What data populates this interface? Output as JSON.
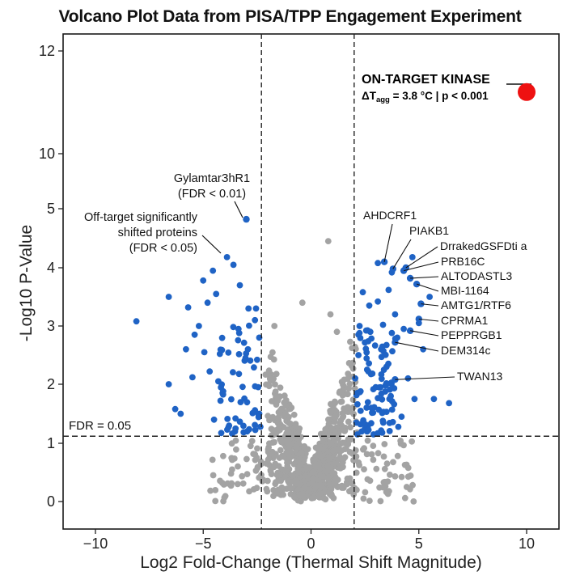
{
  "chart_data": {
    "type": "scatter",
    "title": "Volcano Plot Data from PISA/TPP Engagement Experiment",
    "xlabel": "Log2 Fold-Change (Thermal Shift Magnitude)",
    "ylabel": "-Log10 P-Value",
    "xlim": [
      -11.5,
      11.5
    ],
    "xticks": [
      -10,
      -5,
      0,
      5,
      10
    ],
    "xtick_labels": [
      "−10",
      "−5",
      "0",
      "5",
      "10"
    ],
    "yticks": [
      0,
      1,
      2,
      3,
      4,
      5,
      10,
      12
    ],
    "ytick_labels": [
      "0",
      "1",
      "2",
      "3",
      "4",
      "5",
      "10",
      "12"
    ],
    "y_axis_note": "piecewise axis: 0–5 expanded, 5–12 compressed",
    "vertical_thresholds": [
      -2.3,
      2.0
    ],
    "horizontal_threshold": 1.12,
    "threshold_label": "FDR = 0.05",
    "colors": {
      "nonsignificant": "#a3a3a3",
      "significant": "#1f63c5",
      "target": "#ee1111"
    },
    "target_point": {
      "x": 10.0,
      "y": 11.2,
      "label_line1": "ON-TARGET KINASE",
      "label_line2_prefix": "ΔT",
      "label_line2_sub": "agg",
      "label_line2_rest": " = 3.8 °C | p < 0.001"
    },
    "annotations": {
      "top_protein_line1": "GylamtarЗhR1",
      "top_protein_line2": "(FDR < 0.01)",
      "offtarget_line1": "Off-target significantly",
      "offtarget_line2": "shifted proteins",
      "offtarget_line3": "(FDR < 0.05)"
    },
    "labeled_proteins": [
      {
        "label": "AHDCRF1",
        "x": 3.4,
        "y": 4.1
      },
      {
        "label": "PIAKB1",
        "x": 3.8,
        "y": 3.98
      },
      {
        "label": "DrrakedGSFDti a",
        "x": 4.4,
        "y": 4.0
      },
      {
        "label": "PRB16C",
        "x": 4.3,
        "y": 3.95
      },
      {
        "label": "ALTODASTL3",
        "x": 4.6,
        "y": 3.82
      },
      {
        "label": "MBI-1164",
        "x": 4.9,
        "y": 3.72
      },
      {
        "label": "AMTG1/RTF6",
        "x": 5.1,
        "y": 3.38
      },
      {
        "label": "CPRMA1",
        "x": 5.0,
        "y": 3.12
      },
      {
        "label": "PEPPRGB1",
        "x": 4.6,
        "y": 2.92
      },
      {
        "label": "DEM314c",
        "x": 3.9,
        "y": 2.72
      },
      {
        "label": "TWAN13",
        "x": 3.9,
        "y": 2.08
      }
    ],
    "significant_left": [
      [
        -8.1,
        3.08
      ],
      [
        -6.6,
        2.0
      ],
      [
        -6.3,
        1.58
      ],
      [
        -6.05,
        1.5
      ],
      [
        -6.6,
        3.5
      ],
      [
        -5.8,
        2.6
      ],
      [
        -5.7,
        3.32
      ],
      [
        -5.5,
        2.12
      ],
      [
        -5.4,
        2.85
      ],
      [
        -5.2,
        3.0
      ],
      [
        -5.0,
        3.78
      ],
      [
        -4.95,
        2.55
      ],
      [
        -4.8,
        3.4
      ],
      [
        -4.7,
        2.22
      ],
      [
        -4.55,
        3.95
      ],
      [
        -4.4,
        3.55
      ],
      [
        -4.3,
        2.05
      ],
      [
        -4.2,
        1.72
      ],
      [
        -4.1,
        1.85
      ],
      [
        -3.9,
        4.18
      ],
      [
        -3.6,
        4.05
      ],
      [
        -3.3,
        3.7
      ],
      [
        -3.0,
        4.82
      ],
      [
        -2.9,
        3.3
      ],
      [
        -2.6,
        3.1
      ],
      [
        -2.5,
        2.42
      ],
      [
        -2.45,
        1.95
      ],
      [
        -2.4,
        1.5
      ],
      [
        -2.35,
        1.28
      ],
      [
        -2.4,
        2.8
      ],
      [
        -2.55,
        3.3
      ],
      [
        -3.8,
        1.3
      ],
      [
        -3.5,
        1.25
      ],
      [
        -4.5,
        1.4
      ]
    ],
    "significant_right": [
      [
        2.05,
        2.1
      ],
      [
        2.15,
        1.85
      ],
      [
        2.1,
        1.35
      ],
      [
        2.2,
        2.5
      ],
      [
        2.3,
        1.55
      ],
      [
        2.25,
        3.0
      ],
      [
        2.4,
        3.58
      ],
      [
        2.5,
        1.25
      ],
      [
        2.6,
        2.25
      ],
      [
        2.7,
        3.35
      ],
      [
        2.75,
        2.9
      ],
      [
        2.8,
        1.6
      ],
      [
        3.0,
        1.95
      ],
      [
        3.1,
        3.42
      ],
      [
        3.25,
        2.6
      ],
      [
        3.35,
        1.35
      ],
      [
        3.5,
        2.3
      ],
      [
        3.6,
        3.62
      ],
      [
        3.7,
        1.8
      ],
      [
        3.9,
        3.2
      ],
      [
        4.0,
        2.8
      ],
      [
        4.2,
        1.45
      ],
      [
        4.3,
        2.95
      ],
      [
        4.5,
        2.1
      ],
      [
        4.7,
        4.18
      ],
      [
        4.8,
        1.75
      ],
      [
        5.0,
        3.05
      ],
      [
        5.2,
        2.6
      ],
      [
        5.5,
        3.5
      ],
      [
        5.7,
        1.75
      ],
      [
        6.4,
        1.68
      ],
      [
        3.1,
        4.08
      ],
      [
        3.75,
        3.92
      ],
      [
        2.35,
        1.2
      ],
      [
        2.9,
        1.15
      ],
      [
        2.15,
        1.15
      ],
      [
        2.6,
        1.2
      ],
      [
        3.3,
        1.18
      ],
      [
        4.05,
        1.28
      ],
      [
        2.2,
        2.85
      ]
    ]
  }
}
